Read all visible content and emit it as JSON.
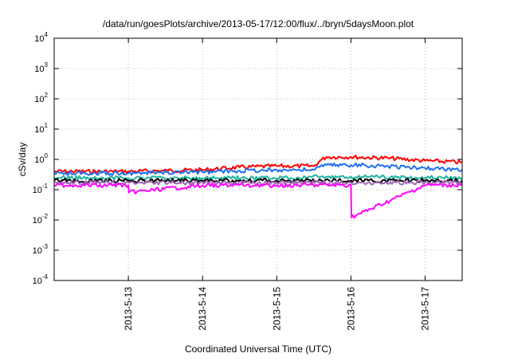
{
  "chart_data": {
    "type": "line",
    "title": "/data/run/goesPlots/archive/2013-05-17/12:00/flux/../bryn/5daysMoon.plot",
    "xlabel": "Coordinated Universal Time (UTC)",
    "ylabel": "cSv/day",
    "yscale": "log",
    "ylim": [
      0.0001,
      10000
    ],
    "xlim": [
      "2013-05-12T00:00",
      "2013-05-17T12:00"
    ],
    "grid": true,
    "legend": "none",
    "x_ticks": [
      {
        "x": "2013-05-13T00:00",
        "label": "2013-5-13"
      },
      {
        "x": "2013-05-14T00:00",
        "label": "2013-5-14"
      },
      {
        "x": "2013-05-15T00:00",
        "label": "2013-5-15"
      },
      {
        "x": "2013-05-16T00:00",
        "label": "2013-5-16"
      },
      {
        "x": "2013-05-17T00:00",
        "label": "2013-5-17"
      }
    ],
    "y_ticks": [
      {
        "value": 0.0001,
        "base": "10",
        "exp": "-4"
      },
      {
        "value": 0.001,
        "base": "10",
        "exp": "-3"
      },
      {
        "value": 0.01,
        "base": "10",
        "exp": "-2"
      },
      {
        "value": 0.1,
        "base": "10",
        "exp": "-1"
      },
      {
        "value": 1,
        "base": "10",
        "exp": "0"
      },
      {
        "value": 10,
        "base": "10",
        "exp": "1"
      },
      {
        "value": 100,
        "base": "10",
        "exp": "2"
      },
      {
        "value": 1000,
        "base": "10",
        "exp": "3"
      },
      {
        "value": 10000,
        "base": "10",
        "exp": "4"
      }
    ],
    "series": [
      {
        "color": "#ff0000",
        "x": [
          "2013-05-12T00:00",
          "2013-05-13T00:00",
          "2013-05-14T00:00",
          "2013-05-14T12:00",
          "2013-05-15T00:00",
          "2013-05-15T12:00",
          "2013-05-15T14:00",
          "2013-05-15T16:00",
          "2013-05-16T00:00",
          "2013-05-16T12:00",
          "2013-05-17T00:00",
          "2013-05-17T12:00"
        ],
        "values": [
          0.4,
          0.4,
          0.45,
          0.55,
          0.6,
          0.6,
          0.9,
          1.2,
          1.2,
          1.1,
          0.9,
          0.8
        ]
      },
      {
        "color": "#1e6ff0",
        "x": [
          "2013-05-12T00:00",
          "2013-05-13T00:00",
          "2013-05-14T00:00",
          "2013-05-14T12:00",
          "2013-05-15T00:00",
          "2013-05-15T12:00",
          "2013-05-15T14:00",
          "2013-05-15T16:00",
          "2013-05-16T00:00",
          "2013-05-16T12:00",
          "2013-05-17T00:00",
          "2013-05-17T12:00"
        ],
        "values": [
          0.35,
          0.35,
          0.38,
          0.42,
          0.45,
          0.45,
          0.58,
          0.65,
          0.65,
          0.6,
          0.52,
          0.45
        ]
      },
      {
        "color": "#20b4a0",
        "x": [
          "2013-05-12T00:00",
          "2013-05-13T00:00",
          "2013-05-14T00:00",
          "2013-05-15T00:00",
          "2013-05-15T16:00",
          "2013-05-16T00:00",
          "2013-05-17T00:00",
          "2013-05-17T12:00"
        ],
        "values": [
          0.25,
          0.24,
          0.24,
          0.24,
          0.27,
          0.27,
          0.25,
          0.24
        ]
      },
      {
        "color": "#000000",
        "x": [
          "2013-05-12T00:00",
          "2013-05-13T00:00",
          "2013-05-14T00:00",
          "2013-05-15T00:00",
          "2013-05-16T00:00",
          "2013-05-17T00:00",
          "2013-05-17T12:00"
        ],
        "values": [
          0.2,
          0.2,
          0.2,
          0.2,
          0.2,
          0.2,
          0.2
        ]
      },
      {
        "color": "#a06bb4",
        "x": [
          "2013-05-12T00:00",
          "2013-05-13T00:00",
          "2013-05-14T00:00",
          "2013-05-15T00:00",
          "2013-05-16T00:00",
          "2013-05-17T00:00",
          "2013-05-17T12:00"
        ],
        "values": [
          0.17,
          0.17,
          0.17,
          0.17,
          0.17,
          0.17,
          0.17
        ]
      },
      {
        "color": "#ff00ff",
        "x": [
          "2013-05-12T00:00",
          "2013-05-13T00:00",
          "2013-05-13T00:10",
          "2013-05-14T00:00",
          "2013-05-15T00:00",
          "2013-05-16T00:00",
          "2013-05-16T00:10",
          "2013-05-17T00:00",
          "2013-05-17T12:00"
        ],
        "values": [
          0.14,
          0.14,
          0.08,
          0.14,
          0.14,
          0.14,
          0.012,
          0.14,
          0.14
        ]
      }
    ]
  }
}
